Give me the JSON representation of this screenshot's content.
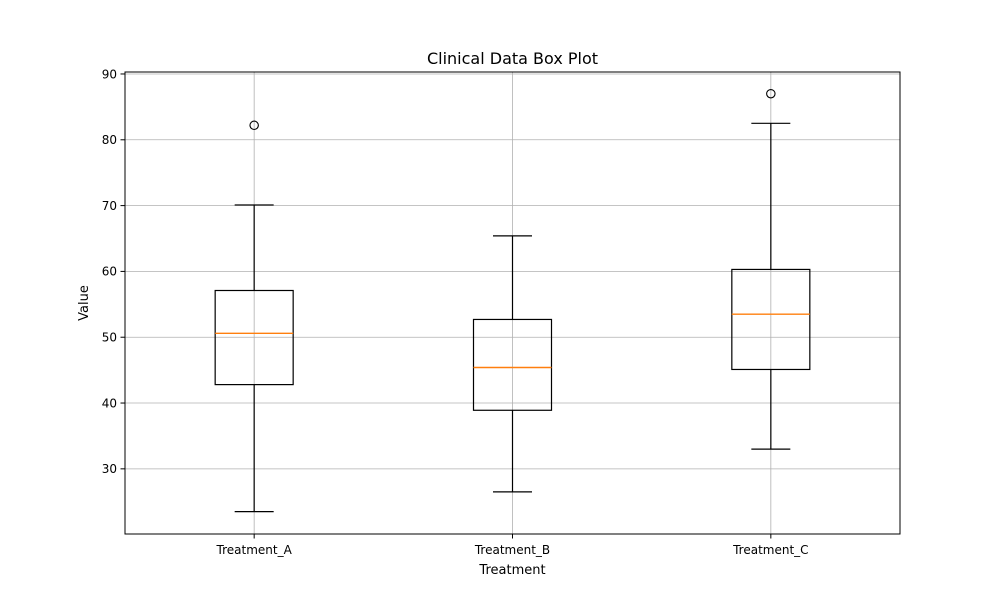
{
  "chart_data": {
    "type": "box",
    "title": "Clinical Data Box Plot",
    "xlabel": "Treatment",
    "ylabel": "Value",
    "ylim": [
      20.1,
      90.3
    ],
    "yticks": [
      30,
      40,
      50,
      60,
      70,
      80,
      90
    ],
    "grid": true,
    "categories": [
      "Treatment_A",
      "Treatment_B",
      "Treatment_C"
    ],
    "boxes": [
      {
        "category": "Treatment_A",
        "whisker_low": 23.5,
        "q1": 42.8,
        "median": 50.6,
        "q3": 57.1,
        "whisker_high": 70.1,
        "outliers": [
          82.2
        ]
      },
      {
        "category": "Treatment_B",
        "whisker_low": 26.5,
        "q1": 38.9,
        "median": 45.4,
        "q3": 52.7,
        "whisker_high": 65.4,
        "outliers": []
      },
      {
        "category": "Treatment_C",
        "whisker_low": 33.0,
        "q1": 45.1,
        "median": 53.5,
        "q3": 60.3,
        "whisker_high": 82.5,
        "outliers": [
          87.0
        ]
      }
    ],
    "colors": {
      "box": "#000000",
      "median": "#ff7f0e",
      "grid": "#b0b0b0"
    }
  }
}
